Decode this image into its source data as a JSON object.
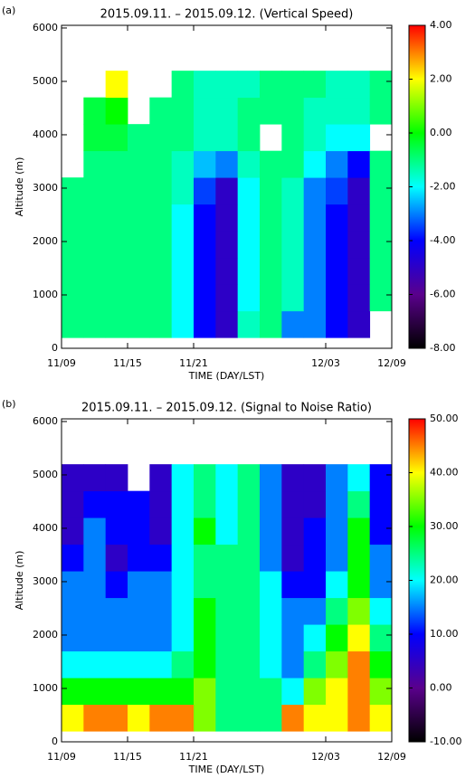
{
  "chart_data": [
    {
      "type": "heatmap",
      "panel_label": "(a)",
      "title": "2015.09.11. – 2015.09.12. (Vertical Speed)",
      "x_label": "TIME (DAY/LST)",
      "y_label": "Altitude (m)",
      "xlim": [
        0,
        30
      ],
      "xticks": [
        {
          "value": 0,
          "label": "11/09"
        },
        {
          "value": 6,
          "label": "11/15"
        },
        {
          "value": 12,
          "label": "11/21"
        },
        {
          "value": 24,
          "label": "12/03"
        },
        {
          "value": 30,
          "label": "12/09"
        }
      ],
      "ylim": [
        0,
        6050
      ],
      "yticks": [
        0,
        1000,
        2000,
        3000,
        4000,
        5000,
        6000
      ],
      "x": [
        1,
        3,
        5,
        7,
        9,
        11,
        13,
        15,
        17,
        19,
        21,
        23,
        25,
        27,
        29
      ],
      "y": [
        450,
        950,
        1450,
        1950,
        2450,
        2950,
        3450,
        3950,
        4450,
        4950
      ],
      "values": [
        [
          -1,
          -1,
          -1,
          -1,
          -1,
          -2,
          -4,
          -5,
          -1.5,
          -1,
          -3,
          -3,
          -4,
          -5,
          null
        ],
        [
          -1,
          -1,
          -1,
          -1,
          -1,
          -2,
          -4,
          -5,
          -2,
          -1,
          -1.5,
          -3,
          -4,
          -5,
          -1
        ],
        [
          -1,
          -1,
          -1,
          -1,
          -1,
          -2,
          -4,
          -5,
          -2,
          -1,
          -1.5,
          -3,
          -4,
          -5,
          -1
        ],
        [
          -1,
          -1,
          -1,
          -1,
          -1,
          -2,
          -4,
          -5,
          -2,
          -1,
          -1.5,
          -3,
          -4,
          -5,
          -1
        ],
        [
          -1,
          -1,
          -1,
          -1,
          -1,
          -2,
          -4,
          -5,
          -2,
          -1,
          -1.5,
          -3,
          -4,
          -5,
          -1
        ],
        [
          -1,
          -1,
          -1,
          -1,
          -1,
          -1.5,
          -3.5,
          -5,
          -2,
          -1,
          -1.5,
          -3,
          -3.5,
          -5,
          -1
        ],
        [
          null,
          -1,
          -1,
          -1,
          -1,
          -1.5,
          -2.5,
          -3,
          -1.5,
          -1,
          -1,
          -2,
          -3,
          -4,
          -1
        ],
        [
          null,
          -0.5,
          -0.5,
          -1,
          -1,
          -1,
          -1.5,
          -1.5,
          -1,
          null,
          -1,
          -1.5,
          -2,
          -2,
          null
        ],
        [
          null,
          -0.5,
          0,
          null,
          -1,
          -1,
          -1.5,
          -1.5,
          -1,
          -1,
          -1,
          -1.5,
          -1.5,
          -1.5,
          -1
        ],
        [
          null,
          null,
          2,
          null,
          null,
          -1,
          -1.5,
          -1.5,
          -1.5,
          -1,
          -1,
          -1,
          -1.5,
          -1.5,
          -1
        ]
      ],
      "colors": [
        "#000000",
        "#5a008c",
        "#0000ff",
        "#00ffff",
        "#00ff00",
        "#ffff00",
        "#ff0000"
      ],
      "clim": [
        -8,
        4
      ],
      "cticks": [
        {
          "value": -8,
          "label": "-8.00"
        },
        {
          "value": -6,
          "label": "-6.00"
        },
        {
          "value": -4,
          "label": "-4.00"
        },
        {
          "value": -2,
          "label": "-2.00"
        },
        {
          "value": 0,
          "label": "0.00"
        },
        {
          "value": 2,
          "label": "2.00"
        },
        {
          "value": 4,
          "label": "4.00"
        }
      ]
    },
    {
      "type": "heatmap",
      "panel_label": "(b)",
      "title": "2015.09.11. – 2015.09.12. (Signal to Noise Ratio)",
      "x_label": "TIME (DAY/LST)",
      "y_label": "Altitude (m)",
      "xlim": [
        0,
        30
      ],
      "xticks": [
        {
          "value": 0,
          "label": "11/09"
        },
        {
          "value": 6,
          "label": "11/15"
        },
        {
          "value": 12,
          "label": "11/21"
        },
        {
          "value": 24,
          "label": "12/03"
        },
        {
          "value": 30,
          "label": "12/09"
        }
      ],
      "ylim": [
        0,
        6050
      ],
      "yticks": [
        0,
        1000,
        2000,
        3000,
        4000,
        5000,
        6000
      ],
      "x": [
        1,
        3,
        5,
        7,
        9,
        11,
        13,
        15,
        17,
        19,
        21,
        23,
        25,
        27,
        29
      ],
      "y": [
        450,
        950,
        1450,
        1950,
        2450,
        2950,
        3450,
        3950,
        4450,
        4950
      ],
      "values": [
        [
          40,
          45,
          45,
          40,
          45,
          45,
          35,
          25,
          25,
          25,
          45,
          40,
          40,
          45,
          40
        ],
        [
          30,
          30,
          30,
          30,
          30,
          30,
          35,
          25,
          25,
          25,
          20,
          35,
          40,
          45,
          35
        ],
        [
          20,
          20,
          20,
          20,
          20,
          25,
          30,
          25,
          25,
          20,
          15,
          25,
          35,
          45,
          30
        ],
        [
          15,
          15,
          15,
          15,
          15,
          20,
          30,
          25,
          25,
          20,
          15,
          20,
          30,
          40,
          25
        ],
        [
          15,
          15,
          15,
          15,
          15,
          20,
          30,
          25,
          25,
          20,
          15,
          15,
          25,
          35,
          20
        ],
        [
          15,
          15,
          10,
          15,
          15,
          20,
          25,
          25,
          25,
          20,
          10,
          10,
          20,
          30,
          15
        ],
        [
          10,
          15,
          5,
          10,
          10,
          20,
          25,
          25,
          25,
          15,
          5,
          10,
          15,
          30,
          15
        ],
        [
          5,
          15,
          10,
          10,
          5,
          20,
          30,
          20,
          25,
          15,
          5,
          10,
          15,
          30,
          10
        ],
        [
          5,
          10,
          10,
          10,
          5,
          20,
          25,
          20,
          25,
          15,
          5,
          5,
          15,
          25,
          10
        ],
        [
          5,
          5,
          5,
          null,
          5,
          20,
          25,
          20,
          25,
          15,
          5,
          5,
          15,
          20,
          10
        ]
      ],
      "colors": [
        "#000000",
        "#5a008c",
        "#0000ff",
        "#00ffff",
        "#00ff00",
        "#ffff00",
        "#ff0000"
      ],
      "clim": [
        -10,
        50
      ],
      "cticks": [
        {
          "value": -10,
          "label": "-10.00"
        },
        {
          "value": 0,
          "label": "0.00"
        },
        {
          "value": 10,
          "label": "10.00"
        },
        {
          "value": 20,
          "label": "20.00"
        },
        {
          "value": 30,
          "label": "30.00"
        },
        {
          "value": 40,
          "label": "40.00"
        },
        {
          "value": 50,
          "label": "50.00"
        }
      ]
    }
  ]
}
